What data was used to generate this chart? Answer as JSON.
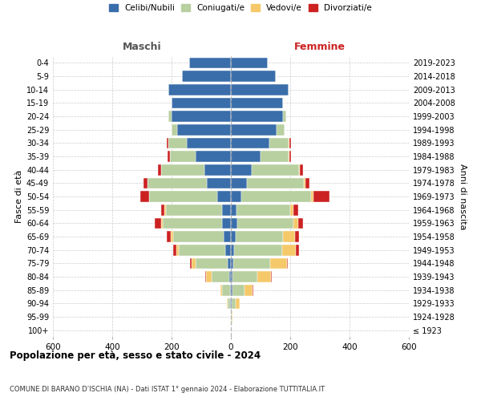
{
  "age_groups": [
    "100+",
    "95-99",
    "90-94",
    "85-89",
    "80-84",
    "75-79",
    "70-74",
    "65-69",
    "60-64",
    "55-59",
    "50-54",
    "45-49",
    "40-44",
    "35-39",
    "30-34",
    "25-29",
    "20-24",
    "15-19",
    "10-14",
    "5-9",
    "0-4"
  ],
  "birth_years": [
    "≤ 1923",
    "1924-1928",
    "1929-1933",
    "1934-1938",
    "1939-1943",
    "1944-1948",
    "1949-1953",
    "1954-1958",
    "1959-1963",
    "1964-1968",
    "1969-1973",
    "1974-1978",
    "1979-1983",
    "1984-1988",
    "1989-1993",
    "1994-1998",
    "1999-2003",
    "2004-2008",
    "2009-2013",
    "2014-2018",
    "2019-2023"
  ],
  "males": {
    "celibi": [
      0,
      0,
      2,
      4,
      5,
      10,
      20,
      25,
      30,
      30,
      45,
      80,
      90,
      120,
      150,
      180,
      200,
      200,
      210,
      165,
      140
    ],
    "coniugati": [
      0,
      0,
      8,
      25,
      60,
      110,
      155,
      170,
      200,
      190,
      230,
      200,
      145,
      85,
      60,
      20,
      10,
      0,
      0,
      0,
      0
    ],
    "vedovi": [
      0,
      0,
      3,
      5,
      20,
      12,
      10,
      8,
      6,
      3,
      2,
      1,
      1,
      0,
      0,
      0,
      0,
      0,
      0,
      0,
      0
    ],
    "divorziati": [
      0,
      0,
      0,
      2,
      2,
      5,
      10,
      12,
      20,
      12,
      28,
      14,
      10,
      8,
      5,
      0,
      0,
      0,
      0,
      0,
      0
    ]
  },
  "females": {
    "nubili": [
      0,
      0,
      2,
      5,
      5,
      8,
      12,
      15,
      22,
      20,
      35,
      55,
      70,
      100,
      130,
      155,
      175,
      175,
      195,
      150,
      125
    ],
    "coniugate": [
      0,
      2,
      15,
      40,
      85,
      125,
      160,
      160,
      190,
      180,
      235,
      190,
      160,
      95,
      65,
      25,
      12,
      0,
      0,
      0,
      0
    ],
    "vedove": [
      0,
      3,
      14,
      28,
      45,
      55,
      48,
      42,
      16,
      12,
      8,
      5,
      3,
      2,
      1,
      0,
      0,
      0,
      0,
      0,
      0
    ],
    "divorziate": [
      0,
      0,
      0,
      2,
      2,
      5,
      10,
      12,
      15,
      15,
      55,
      15,
      10,
      5,
      8,
      2,
      0,
      0,
      0,
      0,
      0
    ]
  },
  "colors": {
    "celibi": "#3a6eaa",
    "coniugati": "#b8cfa0",
    "vedovi": "#f5c96a",
    "divorziati": "#cc2222"
  },
  "xlim": 600,
  "xticks": [
    -600,
    -400,
    -200,
    0,
    200,
    400,
    600
  ],
  "title": "Popolazione per età, sesso e stato civile - 2024",
  "subtitle": "COMUNE DI BARANO D’ISCHIA (NA) - Dati ISTAT 1° gennaio 2024 - Elaborazione TUTTITALIA.IT",
  "ylabel_left": "Fasce di età",
  "ylabel_right": "Anni di nascita",
  "header_left": "Maschi",
  "header_right": "Femmine",
  "legend_labels": [
    "Celibi/Nubili",
    "Coniugati/e",
    "Vedovi/e",
    "Divorziati/e"
  ],
  "bg_color": "#ffffff",
  "grid_color": "#cccccc",
  "center_line_color": "#aaaaaa"
}
